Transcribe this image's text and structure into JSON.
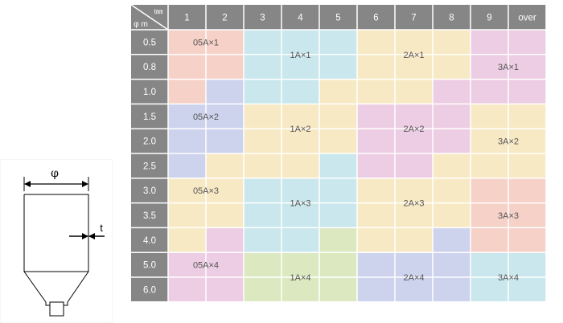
{
  "header": {
    "corner_top": "t㎜",
    "corner_bottom": "φ m",
    "columns": [
      "1",
      "2",
      "3",
      "4",
      "5",
      "6",
      "7",
      "8",
      "9",
      "over"
    ]
  },
  "rows": [
    "0.5",
    "0.8",
    "1.0",
    "1.5",
    "2.0",
    "2.5",
    "3.0",
    "3.5",
    "4.0",
    "5.0",
    "6.0"
  ],
  "colors": {
    "P": "#f6d1c8",
    "C": "#c9e7ec",
    "Y": "#f8e9c5",
    "M": "#eccde3",
    "B": "#cdd2ed",
    "G": "#dbe8c0"
  },
  "cell_colors": [
    [
      "P",
      "P",
      "C",
      "C",
      "C",
      "Y",
      "Y",
      "Y",
      "M",
      "M"
    ],
    [
      "P",
      "P",
      "C",
      "C",
      "C",
      "Y",
      "Y",
      "Y",
      "M",
      "M"
    ],
    [
      "P",
      "B",
      "C",
      "C",
      "Y",
      "Y",
      "Y",
      "M",
      "M",
      "M"
    ],
    [
      "B",
      "B",
      "Y",
      "Y",
      "Y",
      "M",
      "M",
      "M",
      "Y",
      "Y"
    ],
    [
      "B",
      "B",
      "Y",
      "Y",
      "Y",
      "M",
      "M",
      "M",
      "Y",
      "Y"
    ],
    [
      "B",
      "Y",
      "Y",
      "Y",
      "C",
      "M",
      "M",
      "Y",
      "Y",
      "Y"
    ],
    [
      "Y",
      "Y",
      "C",
      "C",
      "C",
      "Y",
      "Y",
      "Y",
      "P",
      "P"
    ],
    [
      "Y",
      "Y",
      "C",
      "C",
      "C",
      "Y",
      "Y",
      "Y",
      "P",
      "P"
    ],
    [
      "Y",
      "M",
      "C",
      "C",
      "G",
      "Y",
      "Y",
      "B",
      "P",
      "P"
    ],
    [
      "M",
      "M",
      "G",
      "G",
      "G",
      "B",
      "B",
      "B",
      "C",
      "C"
    ],
    [
      "M",
      "M",
      "G",
      "G",
      "G",
      "B",
      "B",
      "B",
      "C",
      "C"
    ]
  ],
  "labels": [
    {
      "text": "05A×1",
      "row": 0.5,
      "col": 1
    },
    {
      "text": "1A×1",
      "row": 1.0,
      "col": 3.5
    },
    {
      "text": "2A×1",
      "row": 1.0,
      "col": 6.5
    },
    {
      "text": "3A×1",
      "row": 1.5,
      "col": 9
    },
    {
      "text": "05A×2",
      "row": 3.5,
      "col": 1
    },
    {
      "text": "1A×2",
      "row": 4.0,
      "col": 3.5
    },
    {
      "text": "2A×2",
      "row": 4.0,
      "col": 6.5
    },
    {
      "text": "3A×2",
      "row": 4.5,
      "col": 9
    },
    {
      "text": "05A×3",
      "row": 6.5,
      "col": 1
    },
    {
      "text": "1A×3",
      "row": 7.0,
      "col": 3.5
    },
    {
      "text": "2A×3",
      "row": 7.0,
      "col": 6.5
    },
    {
      "text": "3A×3",
      "row": 7.5,
      "col": 9
    },
    {
      "text": "05A×4",
      "row": 9.5,
      "col": 1
    },
    {
      "text": "1A×4",
      "row": 10.0,
      "col": 3.5
    },
    {
      "text": "2A×4",
      "row": 10.0,
      "col": 6.5
    },
    {
      "text": "3A×4",
      "row": 10.0,
      "col": 9
    }
  ],
  "diagram": {
    "diameter_label": "φ",
    "thickness_label": "t"
  }
}
